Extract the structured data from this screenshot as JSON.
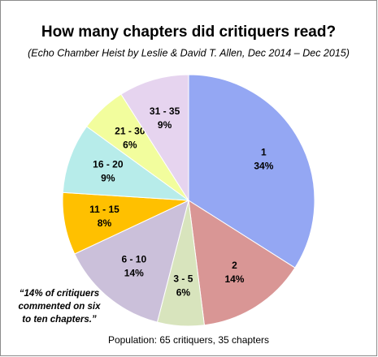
{
  "chart_data": {
    "type": "pie",
    "title": "How many chapters did critiquers read?",
    "subtitle": "(Echo Chamber Heist by Leslie & David T. Allen, Dec 2014 – Dec 2015)",
    "categories": [
      "1",
      "2",
      "3 - 5",
      "6 - 10",
      "11 - 15",
      "16 - 20",
      "21 - 30",
      "31 - 35"
    ],
    "values": [
      34,
      14,
      6,
      14,
      8,
      9,
      6,
      9
    ],
    "value_labels": [
      "34%",
      "14%",
      "6%",
      "14%",
      "8%",
      "9%",
      "6%",
      "9%"
    ],
    "colors": [
      "#94a7f3",
      "#d99695",
      "#d8e4bd",
      "#cbc0da",
      "#ffc000",
      "#b7ecea",
      "#f2fd9d",
      "#e6d4ef"
    ],
    "annotation": [
      "“14% of critiquers",
      "commented on six",
      "to ten chapters.”"
    ],
    "footnote": "Population: 65 critiquers, 35 chapters"
  }
}
